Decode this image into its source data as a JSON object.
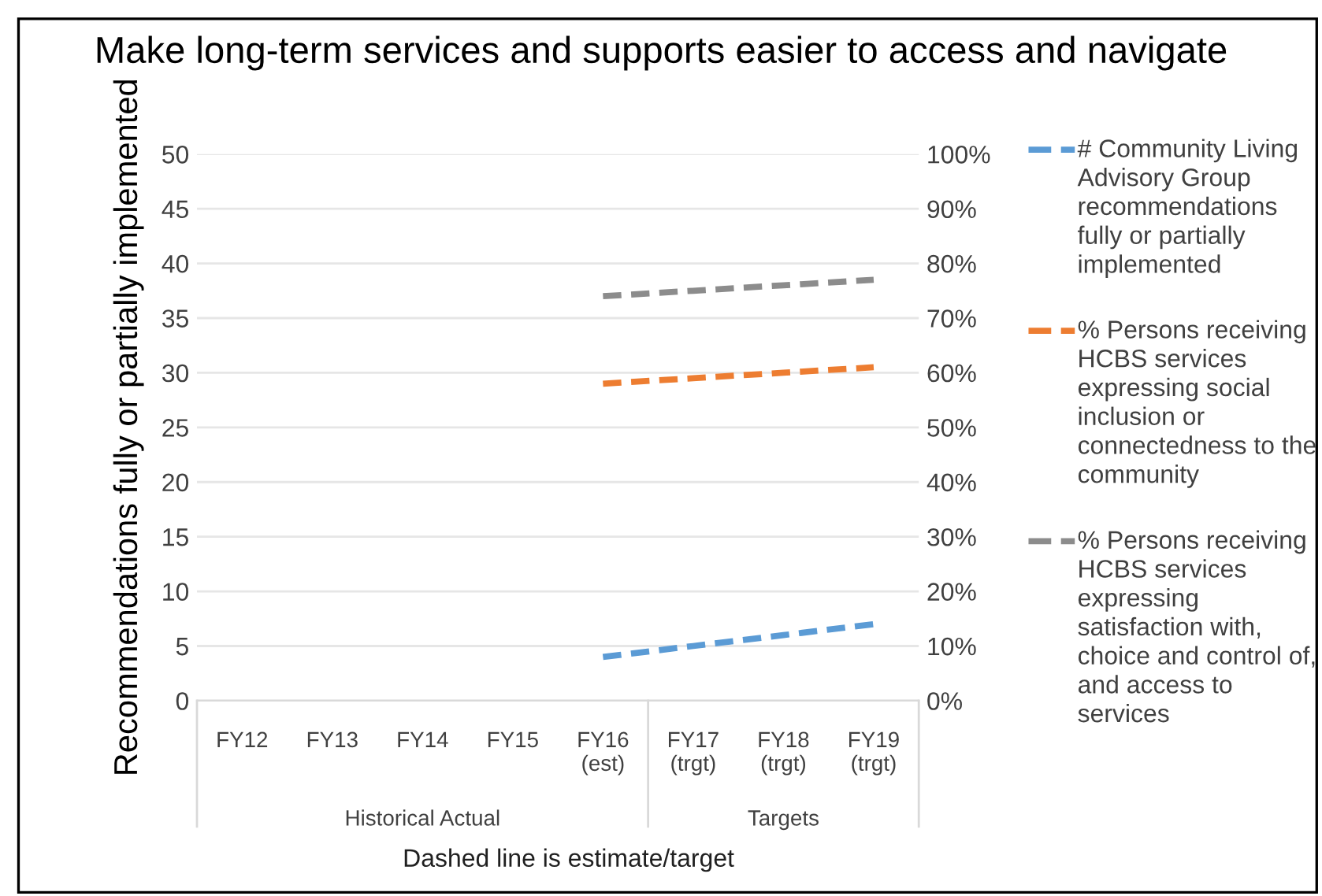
{
  "chart_data": {
    "type": "line",
    "title": "Make long-term services and supports easier to access and navigate",
    "ylabel": "Recommendations fully or partially implemented",
    "categories": [
      "FY12",
      "FY13",
      "FY14",
      "FY15",
      "FY16\n(est)",
      "FY17\n(trgt)",
      "FY18\n(trgt)",
      "FY19\n(trgt)"
    ],
    "series": [
      {
        "name": "# Community Living Advisory Group recommendations fully or partially implemented",
        "color": "#5b9bd5",
        "values": [
          null,
          null,
          null,
          null,
          4,
          5,
          6,
          7
        ]
      },
      {
        "name": "% Persons receiving HCBS services expressing social inclusion or connectedness to the community",
        "color": "#ed7d31",
        "axis": "y2",
        "values": [
          null,
          null,
          null,
          null,
          58,
          59,
          60,
          61
        ]
      },
      {
        "name": "% Persons receiving HCBS services expressing satisfaction with, choice and control of, and access to services",
        "color": "#8c8c8c",
        "axis": "y2",
        "values": [
          null,
          null,
          null,
          null,
          74,
          75,
          76,
          77
        ]
      }
    ],
    "ylim": [
      0,
      50
    ],
    "yticks": [
      0,
      5,
      10,
      15,
      20,
      25,
      30,
      35,
      40,
      45,
      50
    ],
    "y2lim": [
      0,
      100
    ],
    "y2ticks": [
      {
        "value": 0,
        "label": "0%"
      },
      {
        "value": 10,
        "label": "10%"
      },
      {
        "value": 20,
        "label": "20%"
      },
      {
        "value": 30,
        "label": "30%"
      },
      {
        "value": 40,
        "label": "40%"
      },
      {
        "value": 50,
        "label": "50%"
      },
      {
        "value": 60,
        "label": "60%"
      },
      {
        "value": 70,
        "label": "70%"
      },
      {
        "value": 80,
        "label": "80%"
      },
      {
        "value": 90,
        "label": "90%"
      },
      {
        "value": 100,
        "label": "100%"
      }
    ],
    "annotations": [
      "Historical Actual",
      "Targets",
      "Dashed line is estimate/target"
    ],
    "grid": "y",
    "legend": "right",
    "marker": "none",
    "line_style": "dashed"
  }
}
